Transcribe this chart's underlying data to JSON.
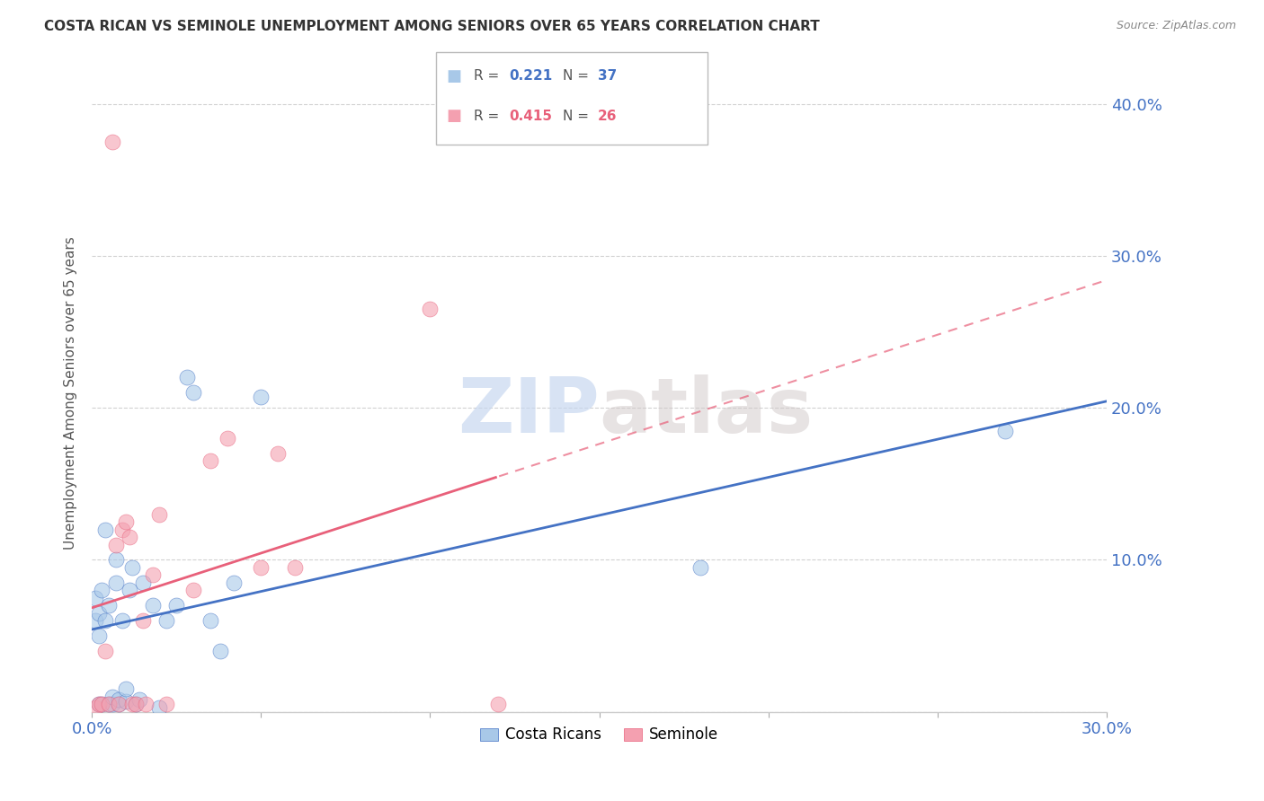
{
  "title": "COSTA RICAN VS SEMINOLE UNEMPLOYMENT AMONG SENIORS OVER 65 YEARS CORRELATION CHART",
  "source": "Source: ZipAtlas.com",
  "ylabel": "Unemployment Among Seniors over 65 years",
  "xlim": [
    0.0,
    0.3
  ],
  "ylim": [
    0.0,
    0.42
  ],
  "xticks": [
    0.0,
    0.05,
    0.1,
    0.15,
    0.2,
    0.25,
    0.3
  ],
  "yticks": [
    0.0,
    0.1,
    0.2,
    0.3,
    0.4
  ],
  "xtick_labels": [
    "0.0%",
    "",
    "",
    "",
    "",
    "",
    "30.0%"
  ],
  "ytick_right_labels": [
    "",
    "10.0%",
    "20.0%",
    "30.0%",
    "40.0%"
  ],
  "costa_rican_color": "#a8c8e8",
  "seminole_color": "#f4a0b0",
  "costa_rican_line_color": "#4472c4",
  "seminole_line_color": "#e8607a",
  "R_costa_rican": 0.221,
  "N_costa_rican": 37,
  "R_seminole": 0.415,
  "N_seminole": 26,
  "legend_label_1": "Costa Ricans",
  "legend_label_2": "Seminole",
  "watermark": "ZIPatlas",
  "costa_rican_x": [
    0.001,
    0.001,
    0.002,
    0.002,
    0.002,
    0.003,
    0.003,
    0.004,
    0.004,
    0.005,
    0.005,
    0.006,
    0.006,
    0.007,
    0.007,
    0.008,
    0.008,
    0.009,
    0.01,
    0.01,
    0.011,
    0.012,
    0.013,
    0.014,
    0.015,
    0.018,
    0.02,
    0.022,
    0.025,
    0.028,
    0.03,
    0.035,
    0.038,
    0.042,
    0.05,
    0.18,
    0.27
  ],
  "costa_rican_y": [
    0.06,
    0.075,
    0.005,
    0.05,
    0.065,
    0.005,
    0.08,
    0.06,
    0.12,
    0.005,
    0.07,
    0.005,
    0.01,
    0.085,
    0.1,
    0.005,
    0.008,
    0.06,
    0.007,
    0.015,
    0.08,
    0.095,
    0.005,
    0.008,
    0.085,
    0.07,
    0.003,
    0.06,
    0.07,
    0.22,
    0.21,
    0.06,
    0.04,
    0.085,
    0.207,
    0.095,
    0.185
  ],
  "seminole_x": [
    0.001,
    0.002,
    0.003,
    0.004,
    0.005,
    0.006,
    0.007,
    0.008,
    0.009,
    0.01,
    0.011,
    0.012,
    0.013,
    0.015,
    0.016,
    0.018,
    0.02,
    0.022,
    0.03,
    0.035,
    0.04,
    0.05,
    0.055,
    0.06,
    0.1,
    0.12
  ],
  "seminole_y": [
    0.003,
    0.005,
    0.005,
    0.04,
    0.005,
    0.375,
    0.11,
    0.005,
    0.12,
    0.125,
    0.115,
    0.005,
    0.005,
    0.06,
    0.005,
    0.09,
    0.13,
    0.005,
    0.08,
    0.165,
    0.18,
    0.095,
    0.17,
    0.095,
    0.265,
    0.005
  ]
}
